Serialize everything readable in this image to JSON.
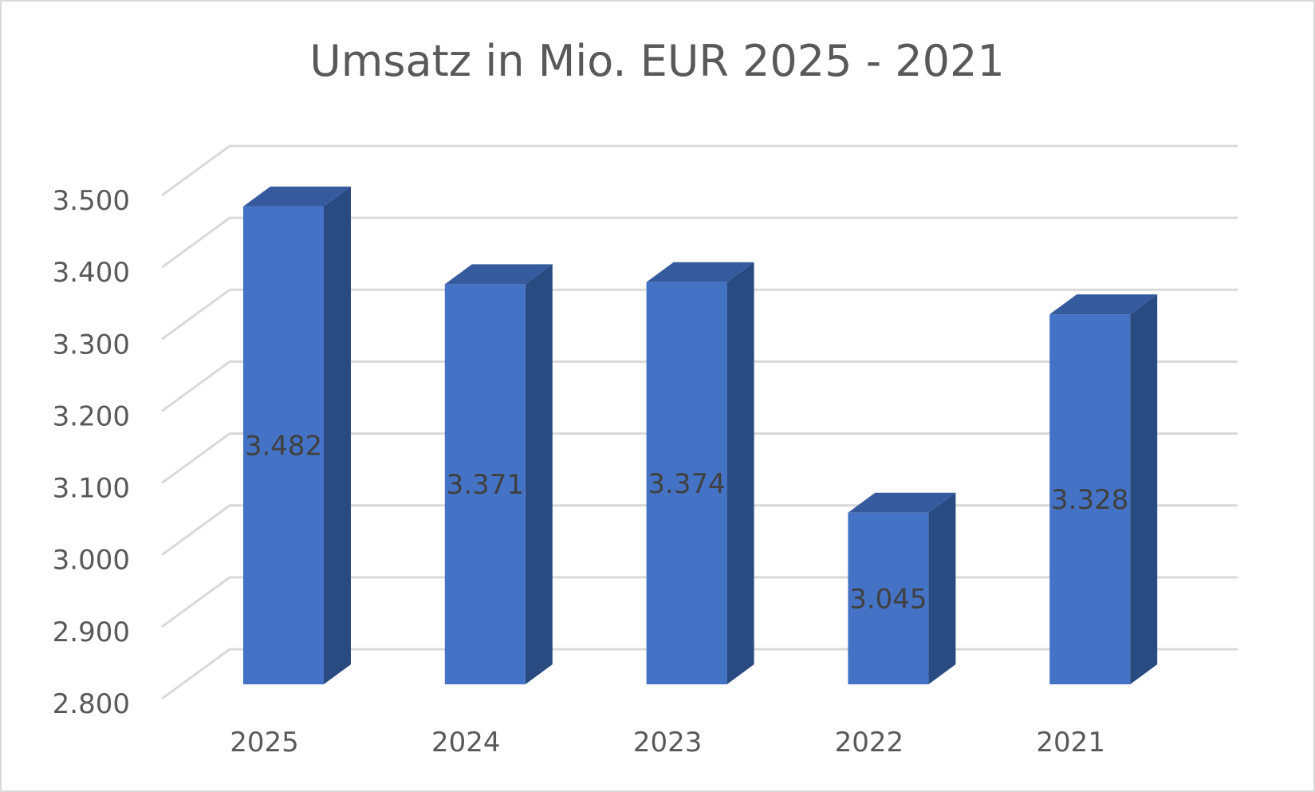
{
  "chart_data": {
    "type": "bar",
    "title": "Umsatz in Mio. EUR 2025 - 2021",
    "xlabel": "",
    "ylabel": "",
    "categories": [
      "2025",
      "2024",
      "2023",
      "2022",
      "2021"
    ],
    "values": [
      3482,
      3371,
      3374,
      3045,
      3328
    ],
    "value_labels": [
      "3.482",
      "3.371",
      "3.374",
      "3.045",
      "3.328"
    ],
    "ylim": [
      2800,
      3500
    ],
    "yticks": [
      2800,
      2900,
      3000,
      3100,
      3200,
      3300,
      3400,
      3500
    ],
    "ytick_labels": [
      "2.800",
      "2.900",
      "3.000",
      "3.100",
      "3.200",
      "3.300",
      "3.400",
      "3.500"
    ],
    "grid": true,
    "legend": "none",
    "style": "3d-column",
    "colors": {
      "bar_front": "#4472C4",
      "bar_side": "#2A4A82",
      "bar_top": "#355A9E",
      "grid": "#D9D9D9",
      "text": "#595959",
      "label": "#404040",
      "border": "#D9D9D9"
    }
  }
}
